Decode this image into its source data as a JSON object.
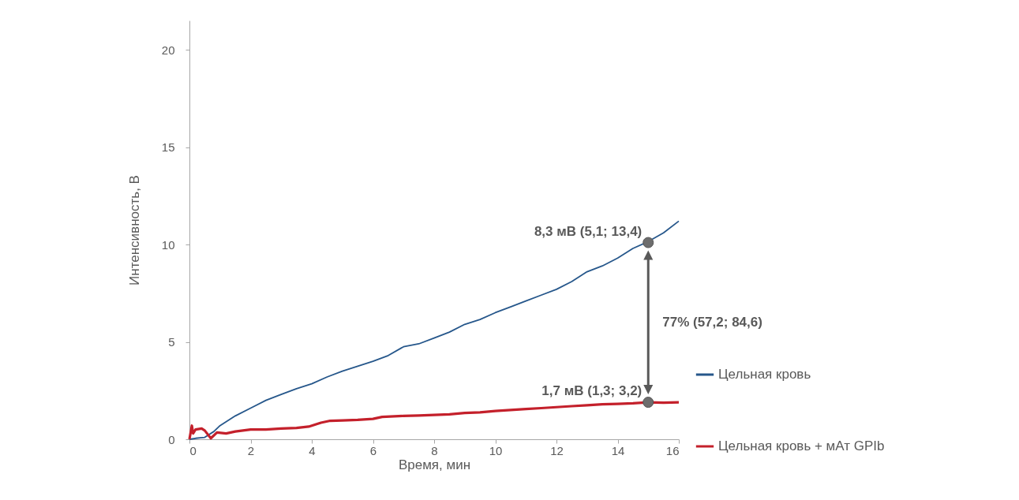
{
  "chart_data": {
    "type": "line",
    "xlabel": "Время, мин",
    "ylabel": "Интенсивность, В",
    "xlim": [
      0,
      16
    ],
    "xticks": [
      0,
      2,
      4,
      6,
      8,
      10,
      12,
      14,
      16
    ],
    "ylim": [
      0,
      21.5
    ],
    "yticks": [
      0,
      5,
      10,
      15,
      20
    ],
    "grid": false,
    "legend": "right",
    "marker": "none",
    "line_style": "solid",
    "series": [
      {
        "name": "Цельная кровь",
        "color": "#26578b",
        "x": [
          0,
          0.2,
          0.5,
          0.8,
          1,
          1.5,
          2,
          2.5,
          3,
          3.5,
          4,
          4.5,
          5,
          5.5,
          6,
          6.5,
          7,
          7.5,
          8,
          8.5,
          9,
          9.5,
          10,
          10.5,
          11,
          11.5,
          12,
          12.5,
          13,
          13.5,
          14,
          14.5,
          15,
          15.5,
          16
        ],
        "values": [
          0,
          0.05,
          0.1,
          0.4,
          0.7,
          1.2,
          1.6,
          2.0,
          2.3,
          2.6,
          2.85,
          3.2,
          3.5,
          3.75,
          4.0,
          4.3,
          4.75,
          4.9,
          5.2,
          5.5,
          5.9,
          6.15,
          6.5,
          6.8,
          7.1,
          7.4,
          7.7,
          8.1,
          8.6,
          8.9,
          9.3,
          9.8,
          10.15,
          10.6,
          11.2
        ]
      },
      {
        "name": "Цельная кровь + мАт GPIb",
        "color": "#c4202b",
        "x": [
          0,
          0.08,
          0.12,
          0.2,
          0.4,
          0.5,
          0.7,
          0.9,
          1.2,
          1.5,
          2,
          2.5,
          3,
          3.5,
          3.9,
          4.3,
          4.6,
          5,
          5.5,
          6,
          6.3,
          7,
          7.5,
          8,
          8.5,
          9,
          9.5,
          10,
          10.5,
          11,
          11.5,
          12,
          12.5,
          13,
          13.5,
          14,
          14.5,
          15,
          15.5,
          16
        ],
        "values": [
          0,
          0.7,
          0.3,
          0.5,
          0.55,
          0.45,
          0.05,
          0.35,
          0.3,
          0.4,
          0.5,
          0.5,
          0.55,
          0.58,
          0.65,
          0.85,
          0.95,
          0.97,
          1.0,
          1.05,
          1.15,
          1.2,
          1.22,
          1.25,
          1.28,
          1.35,
          1.38,
          1.45,
          1.5,
          1.55,
          1.6,
          1.65,
          1.7,
          1.75,
          1.8,
          1.82,
          1.85,
          1.9,
          1.88,
          1.9
        ]
      },
      {
        "type": "scatter",
        "color": "#6d6d6d",
        "x": [
          15,
          15
        ],
        "values": [
          10.1,
          1.9
        ],
        "marker": "circle"
      }
    ],
    "annotations": [
      {
        "text": "8,3 мВ (5,1; 13,4)",
        "x": 15,
        "y": 10.1
      },
      {
        "text": "1,7 мВ (1,3; 3,2)",
        "x": 15,
        "y": 1.9
      },
      "77% (57,2; 84,6)"
    ]
  }
}
